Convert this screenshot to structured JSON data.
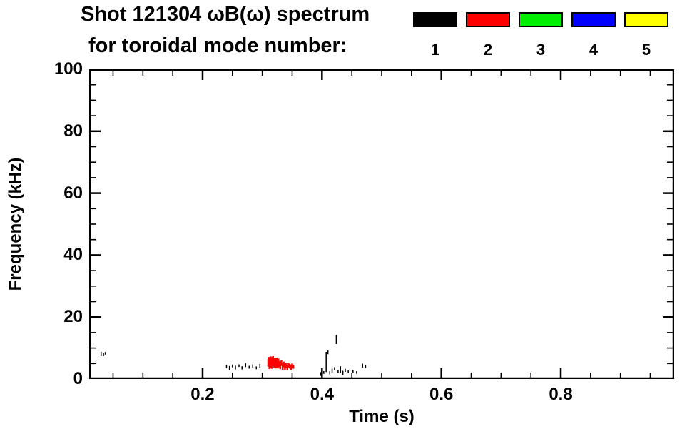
{
  "header": {
    "title": "Shot 121304 ωB(ω) spectrum",
    "subtitle": "for toroidal mode number:"
  },
  "legend": {
    "items": [
      {
        "label": "1",
        "color": "#000000"
      },
      {
        "label": "2",
        "color": "#ff0000"
      },
      {
        "label": "3",
        "color": "#00ee00"
      },
      {
        "label": "4",
        "color": "#0000ff"
      },
      {
        "label": "5",
        "color": "#ffff00"
      }
    ]
  },
  "chart_data": {
    "type": "scatter",
    "title": "Shot 121304 ωB(ω) spectrum for toroidal mode number",
    "xlabel": "Time (s)",
    "ylabel": "Frequency (kHz)",
    "xlim": [
      0.01,
      0.99
    ],
    "ylim": [
      0,
      100
    ],
    "xticks": [
      0.2,
      0.4,
      0.6,
      0.8
    ],
    "xtick_labels": [
      "0.2",
      "0.4",
      "0.6",
      "0.8"
    ],
    "x_minor_interval": 0.05,
    "yticks": [
      0,
      20,
      40,
      60,
      80,
      100
    ],
    "ytick_labels": [
      "0",
      "20",
      "40",
      "60",
      "80",
      "100"
    ],
    "y_minor_interval": 5,
    "grid": false,
    "legend_position": "top",
    "series": [
      {
        "name": "1",
        "color": "#000000",
        "mark_width": 1.5,
        "mark_height_khz": 1.0,
        "points": [
          [
            0.03,
            8.1,
            1.4
          ],
          [
            0.034,
            7.9,
            1.0
          ],
          [
            0.037,
            8.3,
            0.8
          ],
          [
            0.24,
            4.0,
            1.0
          ],
          [
            0.245,
            3.5,
            1.4
          ],
          [
            0.25,
            4.2,
            0.9
          ],
          [
            0.255,
            3.7,
            1.2
          ],
          [
            0.261,
            4.3,
            0.8
          ],
          [
            0.266,
            3.6,
            1.0
          ],
          [
            0.272,
            4.5,
            1.3
          ],
          [
            0.278,
            3.8,
            0.9
          ],
          [
            0.284,
            4.2,
            1.1
          ],
          [
            0.29,
            3.6,
            0.9
          ],
          [
            0.296,
            4.3,
            1.2
          ],
          [
            0.398,
            1.6,
            1.2
          ],
          [
            0.403,
            2.1,
            0.9
          ],
          [
            0.407,
            5.5,
            6.5
          ],
          [
            0.41,
            8.6,
            1.2
          ],
          [
            0.413,
            2.0,
            1.0
          ],
          [
            0.417,
            2.7,
            1.2
          ],
          [
            0.421,
            3.3,
            1.0
          ],
          [
            0.424,
            12.8,
            3.0
          ],
          [
            0.427,
            2.4,
            1.1
          ],
          [
            0.431,
            3.0,
            2.2
          ],
          [
            0.435,
            2.0,
            1.3
          ],
          [
            0.439,
            2.8,
            1.0
          ],
          [
            0.444,
            2.3,
            0.9
          ],
          [
            0.452,
            2.4,
            1.1
          ],
          [
            0.458,
            2.1,
            0.8
          ],
          [
            0.468,
            4.3,
            1.3
          ],
          [
            0.473,
            4.0,
            0.9
          ]
        ]
      },
      {
        "name": "2",
        "color": "#ff0000",
        "mark_width": 2.5,
        "mark_height_khz": 2.0,
        "points": [
          [
            0.31,
            5.2,
            2.4
          ],
          [
            0.311,
            6.1,
            2.0
          ],
          [
            0.312,
            4.5,
            2.6
          ],
          [
            0.313,
            5.7,
            2.2
          ],
          [
            0.314,
            6.4,
            1.8
          ],
          [
            0.315,
            5.0,
            2.8
          ],
          [
            0.316,
            4.3,
            2.0
          ],
          [
            0.317,
            5.9,
            2.4
          ],
          [
            0.318,
            6.5,
            1.8
          ],
          [
            0.319,
            5.4,
            2.6
          ],
          [
            0.32,
            4.7,
            2.2
          ],
          [
            0.321,
            6.0,
            1.8
          ],
          [
            0.322,
            5.2,
            2.6
          ],
          [
            0.323,
            4.4,
            2.0
          ],
          [
            0.324,
            5.8,
            2.2
          ],
          [
            0.325,
            5.0,
            2.6
          ],
          [
            0.326,
            4.3,
            1.8
          ],
          [
            0.327,
            5.5,
            2.2
          ],
          [
            0.328,
            4.8,
            2.0
          ],
          [
            0.33,
            4.4,
            2.4
          ],
          [
            0.332,
            5.1,
            1.8
          ],
          [
            0.334,
            4.1,
            2.2
          ],
          [
            0.336,
            4.7,
            1.8
          ],
          [
            0.338,
            3.9,
            2.0
          ],
          [
            0.34,
            4.3,
            1.6
          ],
          [
            0.342,
            3.7,
            1.8
          ],
          [
            0.344,
            4.5,
            1.6
          ],
          [
            0.346,
            4.1,
            1.4
          ],
          [
            0.348,
            3.7,
            1.6
          ],
          [
            0.35,
            4.3,
            1.4
          ],
          [
            0.352,
            3.9,
            1.2
          ]
        ]
      },
      {
        "name": "3",
        "color": "#00ee00",
        "mark_width": 2,
        "mark_height_khz": 1.5,
        "points": []
      },
      {
        "name": "4",
        "color": "#0000ff",
        "mark_width": 2,
        "mark_height_khz": 1.5,
        "points": []
      },
      {
        "name": "5",
        "color": "#ffff00",
        "mark_width": 2,
        "mark_height_khz": 1.5,
        "points": []
      }
    ]
  }
}
